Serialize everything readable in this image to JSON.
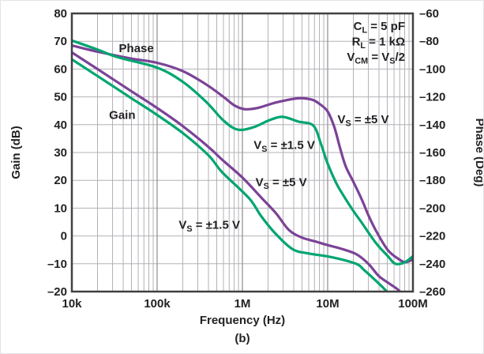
{
  "caption": "(b)",
  "colors": {
    "purple": "#7b4397",
    "green": "#00a571",
    "grid_minor": "#b3b1b6",
    "grid_major": "#9d9ba0",
    "frame": "#414042",
    "text": "#242124"
  },
  "chart_data": {
    "type": "line",
    "title": "",
    "xlabel": "Frequency (Hz)",
    "ylabel_left": "Gain (dB)",
    "ylabel_right": "Phase (Deg)",
    "x_scale": "log",
    "x_range": [
      10000,
      100000000
    ],
    "y_left_range": [
      -20,
      80
    ],
    "y_right_range": [
      -260,
      -60
    ],
    "grid": true,
    "legend_position": "inline-annotations",
    "x_ticks": [
      {
        "v": 10000,
        "label": "10k"
      },
      {
        "v": 100000,
        "label": "100k"
      },
      {
        "v": 1000000,
        "label": "1M"
      },
      {
        "v": 10000000,
        "label": "10M"
      },
      {
        "v": 100000000,
        "label": "100M"
      }
    ],
    "y_left_ticks": [
      {
        "v": 80,
        "label": "80"
      },
      {
        "v": 70,
        "label": "70"
      },
      {
        "v": 60,
        "label": "60"
      },
      {
        "v": 50,
        "label": "50"
      },
      {
        "v": 40,
        "label": "40"
      },
      {
        "v": 30,
        "label": "30"
      },
      {
        "v": 20,
        "label": "20"
      },
      {
        "v": 10,
        "label": "10"
      },
      {
        "v": 0,
        "label": "0"
      },
      {
        "v": -10,
        "label": "–10"
      },
      {
        "v": -20,
        "label": "–20"
      }
    ],
    "y_right_ticks": [
      {
        "v": -60,
        "label": "–60"
      },
      {
        "v": -80,
        "label": "–80"
      },
      {
        "v": -100,
        "label": "–100"
      },
      {
        "v": -120,
        "label": "–120"
      },
      {
        "v": -140,
        "label": "–140"
      },
      {
        "v": -160,
        "label": "–160"
      },
      {
        "v": -180,
        "label": "–180"
      },
      {
        "v": -200,
        "label": "–200"
      },
      {
        "v": -220,
        "label": "–220"
      },
      {
        "v": -240,
        "label": "–240"
      },
      {
        "v": -260,
        "label": "–260"
      }
    ],
    "conditions": [
      "C_{L} = 5 pF",
      "R_{L} = 1 kΩ",
      "V_{CM} = V_{S}/2"
    ],
    "series": [
      {
        "name": "gain-vs5",
        "label": "V_{S} = ±5 V",
        "axis": "gain",
        "color": "purple",
        "points": [
          [
            10000,
            66
          ],
          [
            20000,
            60
          ],
          [
            50000,
            52
          ],
          [
            100000,
            46
          ],
          [
            200000,
            39.5
          ],
          [
            400000,
            32
          ],
          [
            575000,
            27.5
          ],
          [
            1000000,
            21
          ],
          [
            1700000,
            13.5
          ],
          [
            2500000,
            8
          ],
          [
            3500000,
            2.2
          ],
          [
            5000000,
            -0.6
          ],
          [
            7400000,
            -2.1
          ],
          [
            10000000,
            -3.3
          ],
          [
            14000000,
            -4.5
          ],
          [
            21500000,
            -6.5
          ],
          [
            30000000,
            -10
          ],
          [
            40000000,
            -14.5
          ],
          [
            55000000,
            -17.5
          ],
          [
            72000000,
            -20.3
          ],
          [
            100000000,
            -27
          ]
        ]
      },
      {
        "name": "gain-vs1p5",
        "label": "V_{S} = ±1.5 V",
        "axis": "gain",
        "color": "green",
        "points": [
          [
            10000,
            63.5
          ],
          [
            20000,
            57.5
          ],
          [
            50000,
            49.5
          ],
          [
            100000,
            43.5
          ],
          [
            200000,
            37
          ],
          [
            400000,
            29
          ],
          [
            575000,
            23
          ],
          [
            1200000,
            13.5
          ],
          [
            1670000,
            7
          ],
          [
            2500000,
            0.5
          ],
          [
            3900000,
            -4.8
          ],
          [
            6000000,
            -6.3
          ],
          [
            11400000,
            -7.7
          ],
          [
            21500000,
            -10
          ],
          [
            26600000,
            -12.2
          ],
          [
            35000000,
            -15.5
          ],
          [
            50500000,
            -20.3
          ],
          [
            100000000,
            -31
          ]
        ]
      },
      {
        "name": "phase-vs5",
        "label": "V_{S} = ±5 V",
        "axis": "phase",
        "color": "purple",
        "points": [
          [
            10000,
            -83
          ],
          [
            20000,
            -87.5
          ],
          [
            50000,
            -92.5
          ],
          [
            100000,
            -95.5
          ],
          [
            200000,
            -101.5
          ],
          [
            375000,
            -111
          ],
          [
            600000,
            -120
          ],
          [
            800000,
            -126
          ],
          [
            1050000,
            -128.8
          ],
          [
            1500000,
            -128
          ],
          [
            2500000,
            -124
          ],
          [
            4500000,
            -121
          ],
          [
            6500000,
            -122
          ],
          [
            8000000,
            -125
          ],
          [
            10000000,
            -130.5
          ],
          [
            12000000,
            -142
          ],
          [
            14000000,
            -157
          ],
          [
            16300000,
            -170
          ],
          [
            20000000,
            -181
          ],
          [
            24800000,
            -193
          ],
          [
            30000000,
            -205
          ],
          [
            36700000,
            -216
          ],
          [
            50500000,
            -230
          ],
          [
            69500000,
            -237
          ],
          [
            82500000,
            -238.8
          ],
          [
            100000000,
            -237
          ]
        ]
      },
      {
        "name": "phase-vs1p5",
        "label": "V_{S} = ±1.5 V",
        "axis": "phase",
        "color": "green",
        "points": [
          [
            10000,
            -79.5
          ],
          [
            20000,
            -86
          ],
          [
            34400,
            -91.5
          ],
          [
            100000,
            -99
          ],
          [
            198000,
            -109
          ],
          [
            375000,
            -123.5
          ],
          [
            600000,
            -137
          ],
          [
            880000,
            -143.5
          ],
          [
            1350000,
            -141.8
          ],
          [
            2080000,
            -136.7
          ],
          [
            2970000,
            -134.4
          ],
          [
            4550000,
            -137.8
          ],
          [
            6800000,
            -140.7
          ],
          [
            8400000,
            -154.3
          ],
          [
            10000000,
            -168
          ],
          [
            12600000,
            -182
          ],
          [
            15000000,
            -190
          ],
          [
            20000000,
            -202
          ],
          [
            24800000,
            -210
          ],
          [
            36700000,
            -225
          ],
          [
            50500000,
            -234.4
          ],
          [
            62000000,
            -240
          ],
          [
            80000000,
            -239
          ],
          [
            100000000,
            -234.5
          ]
        ]
      }
    ],
    "annotations": [
      {
        "name": "phase-group-label",
        "text": "Phase",
        "freq": 57000,
        "value": 67.5,
        "axis": "gain"
      },
      {
        "name": "gain-group-label",
        "text": "Gain",
        "freq": 39000,
        "value": 43.5,
        "axis": "gain"
      },
      {
        "name": "phase-vs5-label",
        "text": "V_{S} = ±5 V",
        "freq": 26100000,
        "value": -136,
        "axis": "phase"
      },
      {
        "name": "phase-vs1p5-label",
        "text": "V_{S} = ±1.5 V",
        "freq": 3100000,
        "value": -154.5,
        "axis": "phase"
      },
      {
        "name": "gain-vs5-label",
        "text": "V_{S} = ±5 V",
        "freq": 2850000,
        "value": 19.4,
        "axis": "gain"
      },
      {
        "name": "gain-vs1p5-label",
        "text": "V_{S} = ±1.5 V",
        "freq": 410000,
        "value": 4,
        "axis": "gain"
      }
    ]
  }
}
